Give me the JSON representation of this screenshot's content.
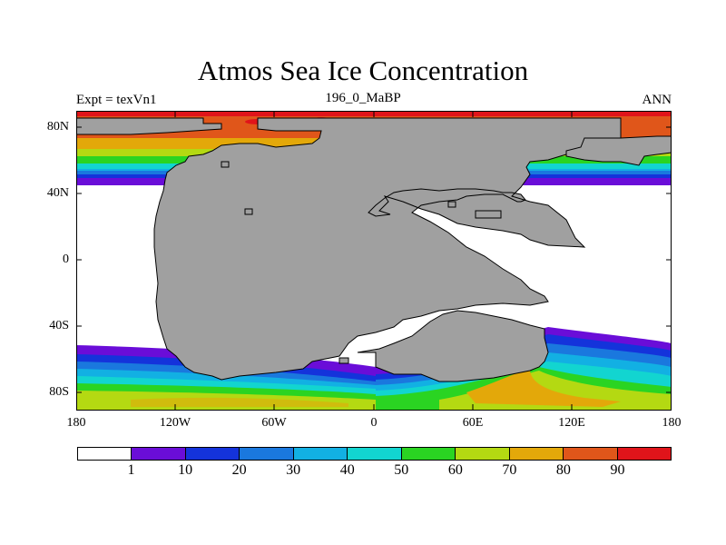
{
  "title": "Atmos Sea Ice Concentration",
  "subtitle_left": "Expt = texVn1",
  "subtitle_center": "196_0_MaBP",
  "subtitle_right": "ANN",
  "map": {
    "projection": "cylindrical-equidistant",
    "lon_range": [
      -180,
      180
    ],
    "lat_range": [
      -90,
      90
    ],
    "y_ticks": [
      "80N",
      "40N",
      "0",
      "40S",
      "80S"
    ],
    "x_ticks": [
      "180",
      "120W",
      "60W",
      "0",
      "60E",
      "120E",
      "180"
    ],
    "land_color": "#a0a0a0"
  },
  "colorbar": {
    "colors": [
      "#ffffff",
      "#6a0dd8",
      "#1433db",
      "#1a78de",
      "#12b0e3",
      "#12d5d0",
      "#2ad422",
      "#b4d912",
      "#e3a80a",
      "#e0561a",
      "#e0141a"
    ],
    "labels": [
      "1",
      "10",
      "20",
      "30",
      "40",
      "50",
      "60",
      "70",
      "80",
      "90"
    ]
  }
}
